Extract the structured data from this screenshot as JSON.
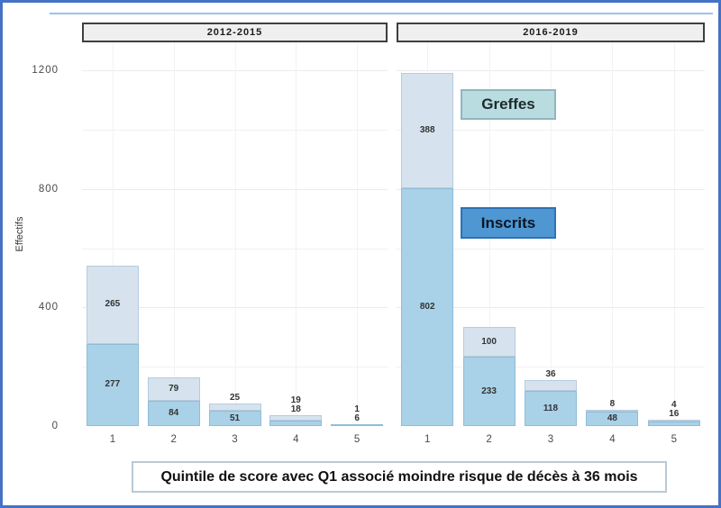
{
  "frame": {
    "border_color": "#4472c4",
    "top_accent_color": "#9dc3e6"
  },
  "y_axis": {
    "title": "Effectifs",
    "ticks": [
      "0",
      "400",
      "800",
      "1200"
    ]
  },
  "x_axis": {
    "caption": "Quintile de score avec Q1 associé moindre risque de décès à 36 mois",
    "tick_labels": [
      "1",
      "2",
      "3",
      "4",
      "5"
    ]
  },
  "legend": {
    "greffes_label": "Greffes",
    "inscrits_label": "Inscrits",
    "greffes_fill": "#b9dce0",
    "inscrits_fill": "#4e97d3"
  },
  "chart_data": {
    "type": "bar",
    "stacked": true,
    "title": "",
    "xlabel": "Quintile de score avec Q1 associé moindre risque de décès à 36 mois",
    "ylabel": "Effectifs",
    "ylim": [
      0,
      1260
    ],
    "grid": true,
    "legend_position": "inside-right-panel",
    "colors": {
      "Inscrits": "#a9d1e8",
      "Greffes": "#d6e3ee"
    },
    "facets": [
      {
        "label": "2012-2015",
        "categories": [
          "1",
          "2",
          "3",
          "4",
          "5"
        ],
        "series": [
          {
            "name": "Inscrits",
            "values": [
              277,
              84,
              51,
              18,
              6
            ]
          },
          {
            "name": "Greffes",
            "values": [
              265,
              79,
              25,
              19,
              1
            ]
          }
        ]
      },
      {
        "label": "2016-2019",
        "categories": [
          "1",
          "2",
          "3",
          "4",
          "5"
        ],
        "series": [
          {
            "name": "Inscrits",
            "values": [
              802,
              233,
              118,
              48,
              16
            ]
          },
          {
            "name": "Greffes",
            "values": [
              388,
              100,
              36,
              8,
              4
            ]
          }
        ]
      }
    ]
  }
}
